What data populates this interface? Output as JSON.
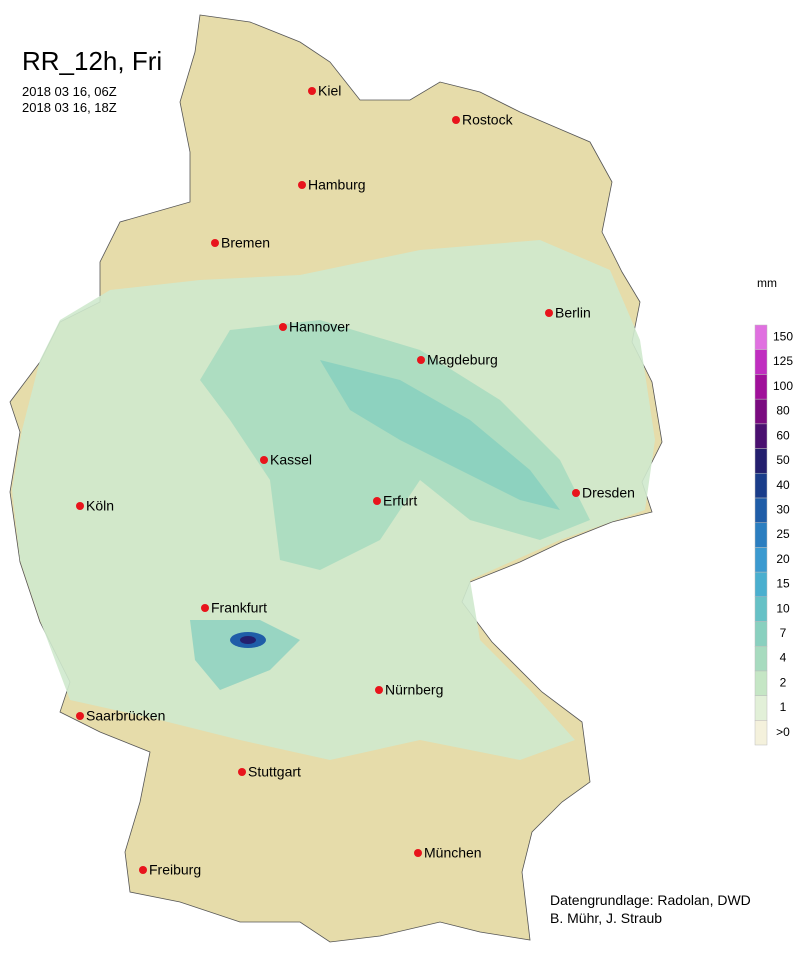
{
  "header": {
    "title": "RR_12h, Fri",
    "start": "2018 03 16, 06Z",
    "end": "2018 03 16, 18Z"
  },
  "cities": [
    "Kiel",
    "Rostock",
    "Hamburg",
    "Bremen",
    "Berlin",
    "Hannover",
    "Magdeburg",
    "Kassel",
    "Dresden",
    "Köln",
    "Erfurt",
    "Frankfurt",
    "Nürnberg",
    "Saarbrücken",
    "Stuttgart",
    "München",
    "Freiburg"
  ],
  "legend": {
    "unit": "mm",
    "levels": [
      {
        "label": ">0",
        "color": "#f4f1dc"
      },
      {
        "label": "1",
        "color": "#e2f0d8"
      },
      {
        "label": "2",
        "color": "#c5e6c5"
      },
      {
        "label": "4",
        "color": "#a7dbbf"
      },
      {
        "label": "7",
        "color": "#89d0bf"
      },
      {
        "label": "10",
        "color": "#66c1c6"
      },
      {
        "label": "15",
        "color": "#4aafcf"
      },
      {
        "label": "20",
        "color": "#3b9ad0"
      },
      {
        "label": "25",
        "color": "#2b7ec0"
      },
      {
        "label": "30",
        "color": "#1f5da8"
      },
      {
        "label": "40",
        "color": "#1a3d8a"
      },
      {
        "label": "50",
        "color": "#241f6e"
      },
      {
        "label": "60",
        "color": "#4a1070"
      },
      {
        "label": "80",
        "color": "#7a0b80"
      },
      {
        "label": "100",
        "color": "#a0109a"
      },
      {
        "label": "125",
        "color": "#c02ec0"
      },
      {
        "label": "150",
        "color": "#e070e0"
      }
    ]
  },
  "credits": [
    "Datengrundlage: Radolan, DWD",
    "B. Mühr, J. Straub"
  ]
}
